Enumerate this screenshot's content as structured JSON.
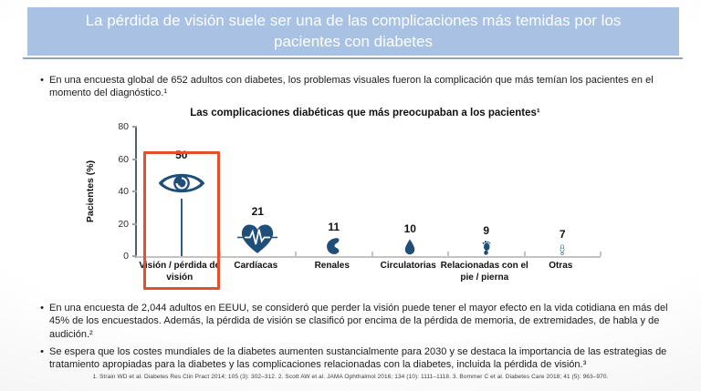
{
  "slide": {
    "title": "La pérdida de visión suele ser una de las complicaciones más temidas por los pacientes con diabetes",
    "bullets_top": [
      "En una encuesta global de 652 adultos con diabetes, los problemas visuales fueron la complicación que más temían los pacientes en el momento del diagnóstico.¹"
    ],
    "bullets_bottom": [
      "En una encuesta de 2,044 adultos en EEUU, se consideró que perder la visión puede tener el mayor efecto en la vida cotidiana en más del 45% de los encuestados. Además, la pérdida de visión se clasificó por encima de la pérdida de memoria, de extremidades, de habla y de audición.²",
      "Se espera que los costes mundiales de la diabetes aumenten sustancialmente para 2030 y se destaca la importancia de las estrategias de tratamiento apropiadas para la diabetes y las complicaciones relacionadas con la diabetes, incluida la pérdida de visión.³"
    ],
    "footnote": "1. Strain WD et al. Diabetes Res Clin Pract 2014; 105 (3): 302–312. 2. Scott AW et al. JAMA Ophthalmol 2016; 134 (10): 1111–1118. 3. Bommer C et al. Diabetes Care 2018; 41 (5): 963–970."
  },
  "chart_data": {
    "type": "bar",
    "style": "pictogram-lollipop",
    "title": "Las complicaciones diabéticas que más preocupaban a los pacientes¹",
    "xlabel": "",
    "ylabel": "Pacientes (%)",
    "ylim": [
      0,
      80
    ],
    "yticks": [
      0,
      20,
      40,
      60,
      80
    ],
    "grid": false,
    "categories": [
      "Visión / pérdida de visión",
      "Cardíacas",
      "Renales",
      "Circulatorias",
      "Relacionadas con el pie / pierna",
      "Otras"
    ],
    "values": [
      50,
      21,
      11,
      10,
      9,
      7
    ],
    "icons": [
      "eye-icon",
      "heart-ecg-icon",
      "kidney-icon",
      "droplet-icon",
      "foot-icon",
      "stethoscope-icon"
    ],
    "highlight_category": "Visión / pérdida de visión",
    "colors": {
      "icon_navy": "#1F4E79",
      "highlight_red": "#E4502E",
      "banner_blue": "#A9C2E3",
      "other_icon_outline": "#4A7A96"
    }
  }
}
